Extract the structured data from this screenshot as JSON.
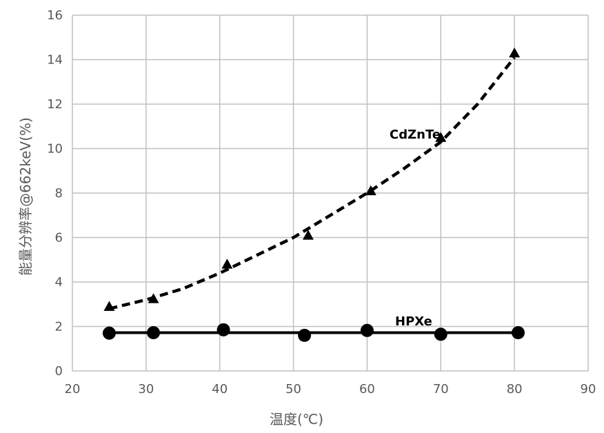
{
  "chart_data": {
    "type": "line",
    "xlabel": "温度(℃)",
    "ylabel": "能量分辨率@662keV(%)",
    "xlim": [
      20,
      90
    ],
    "ylim": [
      0,
      16
    ],
    "x_ticks": [
      20,
      30,
      40,
      50,
      60,
      70,
      80,
      90
    ],
    "y_ticks": [
      0,
      2,
      4,
      6,
      8,
      10,
      12,
      14,
      16
    ],
    "grid": true,
    "series": [
      {
        "name": "CdZnTe",
        "marker": "triangle",
        "line": "dashed-trend",
        "x": [
          25,
          31,
          41,
          52,
          60.5,
          70,
          80
        ],
        "y": [
          2.9,
          3.25,
          4.8,
          6.1,
          8.1,
          10.5,
          14.3
        ],
        "trend": [
          [
            25,
            2.8
          ],
          [
            30,
            3.2
          ],
          [
            35,
            3.7
          ],
          [
            40,
            4.4
          ],
          [
            45,
            5.2
          ],
          [
            50,
            6.0
          ],
          [
            55,
            7.0
          ],
          [
            60,
            8.0
          ],
          [
            65,
            9.1
          ],
          [
            70,
            10.3
          ],
          [
            75,
            12.0
          ],
          [
            80,
            14.1
          ]
        ]
      },
      {
        "name": "HPXe",
        "marker": "circle",
        "line": "solid-flat",
        "x": [
          25,
          31,
          40.5,
          51.5,
          60,
          70,
          80.5
        ],
        "y": [
          1.7,
          1.72,
          1.85,
          1.6,
          1.82,
          1.65,
          1.72
        ],
        "trend_y": 1.72
      }
    ],
    "colors": {
      "grid": "#bfbfbf",
      "axis": "#bfbfbf",
      "series": "#000000",
      "text": "#595959"
    }
  }
}
